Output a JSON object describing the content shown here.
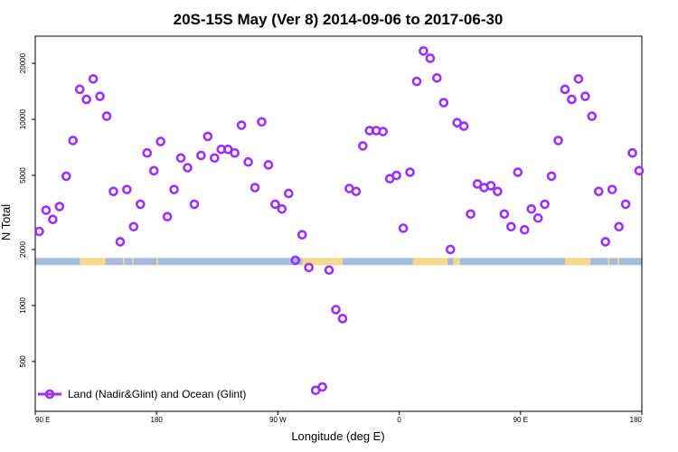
{
  "chart_data": {
    "type": "scatter",
    "title": "20S-15S May (Ver 8)   2014-09-06 to 2017-06-30",
    "xlabel": "Longitude (deg E)",
    "ylabel": "N Total",
    "x_ticks": [
      {
        "v": 90,
        "label": "90 E"
      },
      {
        "v": 180,
        "label": "180"
      },
      {
        "v": 270,
        "label": "90 W"
      },
      {
        "v": 360,
        "label": "0"
      },
      {
        "v": 450,
        "label": "90 E"
      },
      {
        "v": 540,
        "label": "180"
      }
    ],
    "y_ticks": [
      {
        "v": 500,
        "label": "500"
      },
      {
        "v": 1000,
        "label": "1000"
      },
      {
        "v": 2000,
        "label": "2000"
      },
      {
        "v": 5000,
        "label": "5000"
      },
      {
        "v": 10000,
        "label": "10000"
      },
      {
        "v": 20000,
        "label": "20000"
      }
    ],
    "xlim": [
      90,
      540
    ],
    "ylim_log": [
      270,
      28000
    ],
    "series": [
      {
        "name": "Land (Nadir&Glint) and Ocean (Glint)",
        "color": "#9b30ff",
        "points": [
          [
            93,
            2500
          ],
          [
            98,
            3250
          ],
          [
            103,
            2900
          ],
          [
            108,
            3400
          ],
          [
            113,
            4950
          ],
          [
            118,
            7700
          ],
          [
            123,
            14500
          ],
          [
            128,
            12800
          ],
          [
            133,
            16500
          ],
          [
            138,
            13300
          ],
          [
            143,
            10400
          ],
          [
            148,
            4100
          ],
          [
            153,
            2200
          ],
          [
            158,
            4200
          ],
          [
            163,
            2650
          ],
          [
            168,
            3500
          ],
          [
            173,
            6600
          ],
          [
            178,
            5300
          ],
          [
            183,
            7600
          ],
          [
            188,
            3000
          ],
          [
            193,
            4200
          ],
          [
            198,
            6200
          ],
          [
            203,
            5500
          ],
          [
            208,
            3500
          ],
          [
            213,
            6400
          ],
          [
            218,
            8100
          ],
          [
            223,
            6200
          ],
          [
            228,
            6900
          ],
          [
            233,
            6900
          ],
          [
            238,
            6600
          ],
          [
            243,
            9300
          ],
          [
            248,
            5900
          ],
          [
            253,
            4300
          ],
          [
            258,
            9700
          ],
          [
            263,
            5700
          ],
          [
            268,
            3500
          ],
          [
            273,
            3300
          ],
          [
            278,
            4000
          ],
          [
            283,
            1750
          ],
          [
            288,
            2400
          ],
          [
            293,
            1600
          ],
          [
            298,
            350
          ],
          [
            303,
            365
          ],
          [
            308,
            1550
          ],
          [
            313,
            950
          ],
          [
            318,
            850
          ],
          [
            323,
            4250
          ],
          [
            328,
            4100
          ],
          [
            333,
            7200
          ],
          [
            338,
            8700
          ],
          [
            343,
            8700
          ],
          [
            348,
            8600
          ],
          [
            353,
            4800
          ],
          [
            358,
            5000
          ],
          [
            363,
            2600
          ],
          [
            368,
            5200
          ],
          [
            373,
            16000
          ],
          [
            378,
            23300
          ],
          [
            383,
            21300
          ],
          [
            388,
            16700
          ],
          [
            393,
            12300
          ],
          [
            398,
            2000
          ],
          [
            403,
            9600
          ],
          [
            408,
            9200
          ],
          [
            413,
            3100
          ],
          [
            418,
            4500
          ],
          [
            423,
            4300
          ],
          [
            428,
            4400
          ],
          [
            433,
            4100
          ],
          [
            438,
            3100
          ],
          [
            443,
            2650
          ],
          [
            448,
            5200
          ],
          [
            453,
            2550
          ],
          [
            458,
            3300
          ],
          [
            463,
            2950
          ],
          [
            468,
            3500
          ],
          [
            473,
            4950
          ],
          [
            478,
            7700
          ],
          [
            483,
            14500
          ],
          [
            488,
            12800
          ],
          [
            493,
            16500
          ],
          [
            498,
            13300
          ],
          [
            503,
            10400
          ],
          [
            508,
            4100
          ],
          [
            513,
            2200
          ],
          [
            518,
            4200
          ],
          [
            523,
            2650
          ],
          [
            528,
            3500
          ],
          [
            533,
            6600
          ],
          [
            538,
            5300
          ]
        ]
      }
    ],
    "land_ocean_band": {
      "y_range": [
        1650,
        1800
      ],
      "ocean_color": "#a4bcdc",
      "land_color": "#f7d98b",
      "land_segments": [
        [
          123,
          142
        ],
        [
          155,
          156
        ],
        [
          162,
          163
        ],
        [
          180,
          181
        ],
        [
          288,
          318
        ],
        [
          370,
          396
        ],
        [
          400,
          405
        ],
        [
          483,
          502
        ],
        [
          515,
          516
        ],
        [
          522,
          523
        ]
      ]
    },
    "legend": {
      "position": "bottom-left"
    }
  }
}
